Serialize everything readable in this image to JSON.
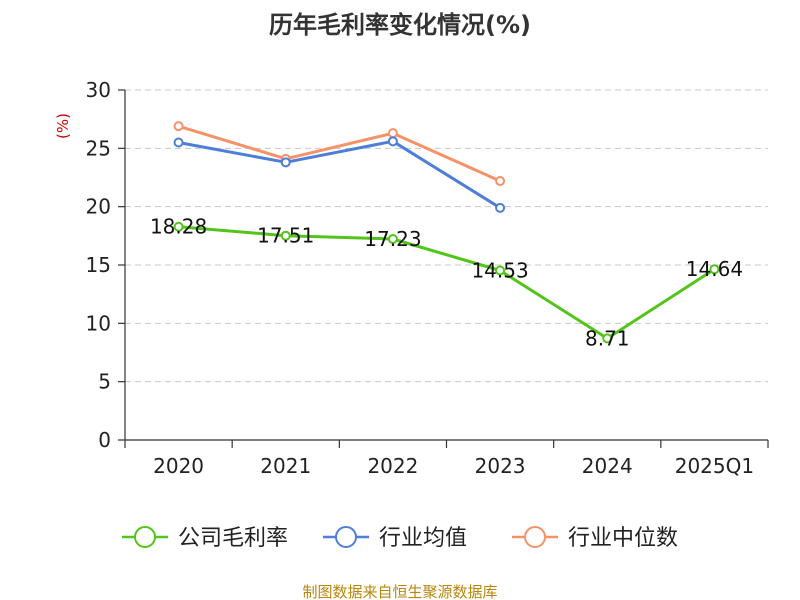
{
  "chart_data": {
    "type": "line",
    "title": "历年毛利率变化情况(%)",
    "ylabel": "(%)",
    "xlabel": "",
    "ylim": [
      0,
      30
    ],
    "yticks": [
      0,
      5,
      10,
      15,
      20,
      25,
      30
    ],
    "categories": [
      "2020",
      "2021",
      "2022",
      "2023",
      "2024",
      "2025Q1"
    ],
    "grid": "horizontal dashed",
    "legend_position": "bottom",
    "series": [
      {
        "name": "公司毛利率",
        "color": "#52c41a",
        "values": [
          18.28,
          17.51,
          17.23,
          14.53,
          8.71,
          14.64
        ],
        "data_labels": [
          "18.28",
          "17.51",
          "17.23",
          "14.53",
          "8.71",
          "14.64"
        ]
      },
      {
        "name": "行业均值",
        "color": "#4e7fd8",
        "values": [
          25.5,
          23.8,
          25.6,
          19.9,
          null,
          null
        ]
      },
      {
        "name": "行业中位数",
        "color": "#f5926a",
        "values": [
          26.9,
          24.1,
          26.3,
          22.2,
          null,
          null
        ]
      }
    ]
  },
  "footer": {
    "source": "制图数据来自恒生聚源数据库"
  }
}
